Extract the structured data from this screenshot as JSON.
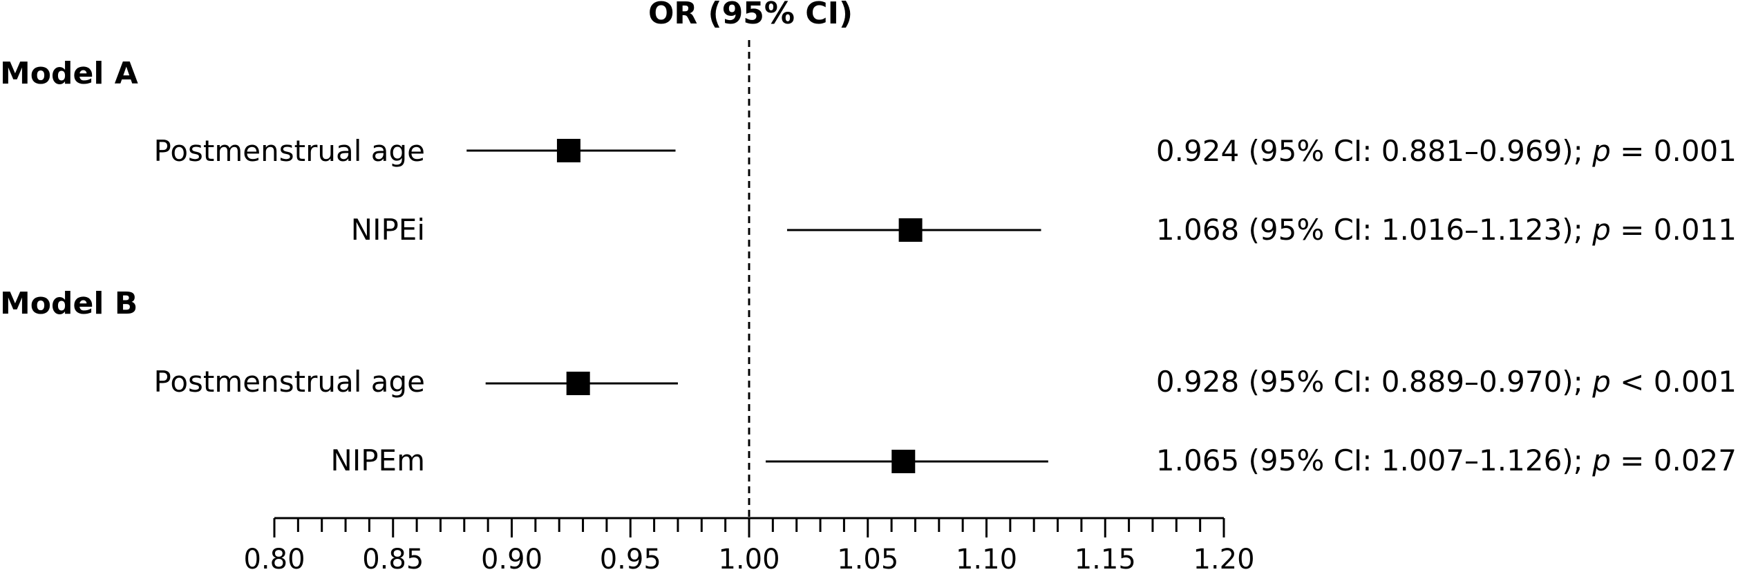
{
  "chart_data": {
    "type": "forest",
    "title": "OR (95% CI)",
    "reference_line": 1.0,
    "xlim": [
      0.8,
      1.2
    ],
    "x_ticks": [
      0.8,
      0.85,
      0.9,
      0.95,
      1.0,
      1.05,
      1.1,
      1.15,
      1.2
    ],
    "x_tick_labels": [
      "0.80",
      "0.85",
      "0.90",
      "0.95",
      "1.00",
      "1.05",
      "1.10",
      "1.15",
      "1.20"
    ],
    "minor_tick_step": 0.01,
    "groups": [
      {
        "name": "Model A",
        "rows": [
          {
            "label": "Postmenstrual age",
            "or": 0.924,
            "lo": 0.881,
            "hi": 0.969,
            "ci_text": "0.924 (95% CI: 0.881–0.969); ",
            "p_label": "p",
            "p_rest": " = 0.001"
          },
          {
            "label": "NIPEi",
            "or": 1.068,
            "lo": 1.016,
            "hi": 1.123,
            "ci_text": "1.068 (95% CI: 1.016–1.123); ",
            "p_label": "p",
            "p_rest": " = 0.011"
          }
        ]
      },
      {
        "name": "Model B",
        "rows": [
          {
            "label": "Postmenstrual age",
            "or": 0.928,
            "lo": 0.889,
            "hi": 0.97,
            "ci_text": "0.928 (95% CI: 0.889–0.970); ",
            "p_label": "p",
            "p_rest": " < 0.001"
          },
          {
            "label": "NIPEm",
            "or": 1.065,
            "lo": 1.007,
            "hi": 1.126,
            "ci_text": "1.065 (95% CI: 1.007–1.126); ",
            "p_label": "p",
            "p_rest": " = 0.027"
          }
        ]
      }
    ]
  }
}
